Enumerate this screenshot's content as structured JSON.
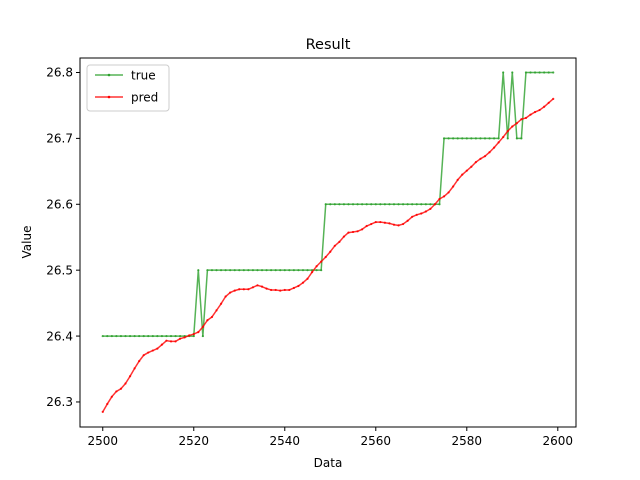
{
  "chart_data": {
    "type": "line",
    "title": "Result",
    "xlabel": "Data",
    "ylabel": "Value",
    "xlim": [
      2495,
      2604
    ],
    "ylim": [
      26.262,
      26.822
    ],
    "xticks": [
      2500,
      2520,
      2540,
      2560,
      2580,
      2600
    ],
    "yticks": [
      26.3,
      26.4,
      26.5,
      26.6,
      26.7,
      26.8
    ],
    "legend_position": "top-left",
    "grid": false,
    "series": [
      {
        "name": "true",
        "color": "#2ca02c",
        "x_start": 2500,
        "values": [
          26.4,
          26.4,
          26.4,
          26.4,
          26.4,
          26.4,
          26.4,
          26.4,
          26.4,
          26.4,
          26.4,
          26.4,
          26.4,
          26.4,
          26.4,
          26.4,
          26.4,
          26.4,
          26.4,
          26.4,
          26.4,
          26.5,
          26.4,
          26.5,
          26.5,
          26.5,
          26.5,
          26.5,
          26.5,
          26.5,
          26.5,
          26.5,
          26.5,
          26.5,
          26.5,
          26.5,
          26.5,
          26.5,
          26.5,
          26.5,
          26.5,
          26.5,
          26.5,
          26.5,
          26.5,
          26.5,
          26.5,
          26.5,
          26.5,
          26.6,
          26.6,
          26.6,
          26.6,
          26.6,
          26.6,
          26.6,
          26.6,
          26.6,
          26.6,
          26.6,
          26.6,
          26.6,
          26.6,
          26.6,
          26.6,
          26.6,
          26.6,
          26.6,
          26.6,
          26.6,
          26.6,
          26.6,
          26.6,
          26.6,
          26.6,
          26.7,
          26.7,
          26.7,
          26.7,
          26.7,
          26.7,
          26.7,
          26.7,
          26.7,
          26.7,
          26.7,
          26.7,
          26.7,
          26.8,
          26.7,
          26.8,
          26.7,
          26.7,
          26.8,
          26.8,
          26.8,
          26.8,
          26.8,
          26.8,
          26.8
        ]
      },
      {
        "name": "pred",
        "color": "#ff0000",
        "x_start": 2500,
        "values": [
          26.285,
          26.297,
          26.308,
          26.316,
          26.32,
          26.328,
          26.339,
          26.351,
          26.362,
          26.371,
          26.375,
          26.378,
          26.381,
          26.387,
          26.393,
          26.392,
          26.392,
          26.396,
          26.398,
          26.401,
          26.403,
          26.406,
          26.414,
          26.424,
          26.429,
          26.439,
          26.449,
          26.46,
          26.466,
          26.469,
          26.471,
          26.471,
          26.471,
          26.474,
          26.477,
          26.475,
          26.472,
          26.47,
          26.47,
          26.469,
          26.47,
          26.47,
          26.473,
          26.476,
          26.481,
          26.487,
          26.497,
          26.506,
          26.513,
          26.52,
          26.528,
          26.537,
          26.543,
          26.551,
          26.557,
          26.558,
          26.559,
          26.562,
          26.567,
          26.57,
          26.573,
          26.573,
          26.572,
          26.571,
          26.569,
          26.568,
          26.57,
          26.575,
          26.581,
          26.584,
          26.586,
          26.589,
          26.593,
          26.6,
          26.608,
          26.612,
          26.618,
          26.627,
          26.637,
          26.645,
          26.651,
          26.657,
          26.664,
          26.669,
          26.673,
          26.679,
          26.686,
          26.694,
          26.702,
          26.711,
          26.718,
          26.723,
          26.729,
          26.731,
          26.736,
          26.74,
          26.743,
          26.748,
          26.754,
          26.76
        ]
      }
    ]
  }
}
